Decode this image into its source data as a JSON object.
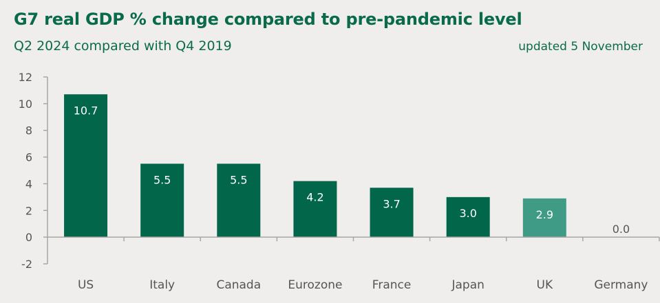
{
  "header": {
    "title": "G7 real GDP % change compared to pre-pandemic level",
    "subtitle": "Q2 2024 compared with Q4 2019",
    "updated": "updated 5 November"
  },
  "colors": {
    "background": "#efeeec",
    "bar": "#02674a",
    "highlight_bar": "#3f9b86",
    "axis": "#a6a6a6",
    "title_text": "#0a6a4c"
  },
  "chart_data": {
    "type": "bar",
    "title": "G7 real GDP % change compared to pre-pandemic level",
    "subtitle": "Q2 2024 compared with Q4 2019",
    "annotation": "updated 5 November",
    "categories": [
      "US",
      "Italy",
      "Canada",
      "Eurozone",
      "France",
      "Japan",
      "UK",
      "Germany"
    ],
    "values": [
      10.7,
      5.5,
      5.5,
      4.2,
      3.7,
      3.0,
      2.9,
      0.0
    ],
    "value_labels": [
      "10.7",
      "5.5",
      "5.5",
      "4.2",
      "3.7",
      "3.0",
      "2.9",
      "0.0"
    ],
    "highlight": "UK",
    "xlabel": "",
    "ylabel": "",
    "ylim": [
      -2,
      12
    ],
    "yticks": [
      -2,
      0,
      2,
      4,
      6,
      8,
      10,
      12
    ],
    "ytick_labels": [
      "-2",
      "0",
      "2",
      "4",
      "6",
      "8",
      "10",
      "12"
    ],
    "grid": false,
    "legend": "none"
  }
}
